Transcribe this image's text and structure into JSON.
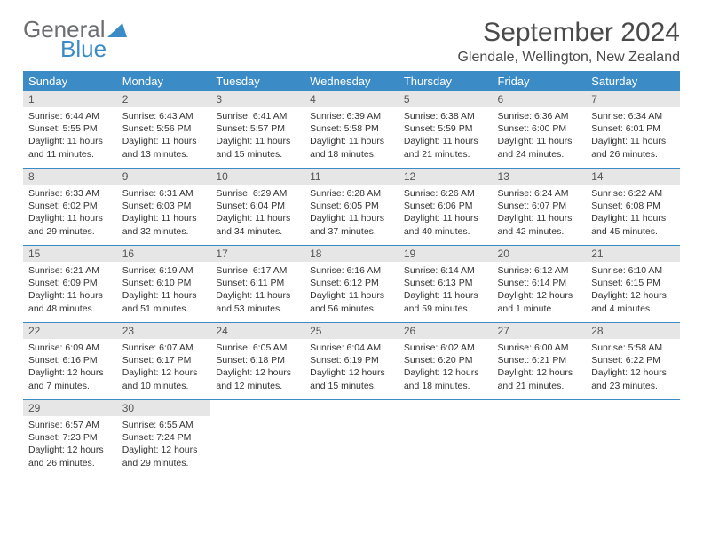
{
  "logo": {
    "text_gray": "General",
    "text_blue": "Blue",
    "gray_color": "#6d6e71",
    "blue_color": "#3b8bc6"
  },
  "header": {
    "month_title": "September 2024",
    "location": "Glendale, Wellington, New Zealand"
  },
  "styling": {
    "header_bg": "#3b8bc6",
    "header_text": "#ffffff",
    "daynum_bg": "#e6e6e6",
    "border_color": "#3b8bc6",
    "body_text_color": "#333333",
    "page_bg": "#ffffff",
    "th_fontsize": 13,
    "daynum_fontsize": 12,
    "body_fontsize": 10.5
  },
  "weekdays": [
    "Sunday",
    "Monday",
    "Tuesday",
    "Wednesday",
    "Thursday",
    "Friday",
    "Saturday"
  ],
  "weeks": [
    [
      {
        "n": "1",
        "sr": "Sunrise: 6:44 AM",
        "ss": "Sunset: 5:55 PM",
        "dl": "Daylight: 11 hours and 11 minutes."
      },
      {
        "n": "2",
        "sr": "Sunrise: 6:43 AM",
        "ss": "Sunset: 5:56 PM",
        "dl": "Daylight: 11 hours and 13 minutes."
      },
      {
        "n": "3",
        "sr": "Sunrise: 6:41 AM",
        "ss": "Sunset: 5:57 PM",
        "dl": "Daylight: 11 hours and 15 minutes."
      },
      {
        "n": "4",
        "sr": "Sunrise: 6:39 AM",
        "ss": "Sunset: 5:58 PM",
        "dl": "Daylight: 11 hours and 18 minutes."
      },
      {
        "n": "5",
        "sr": "Sunrise: 6:38 AM",
        "ss": "Sunset: 5:59 PM",
        "dl": "Daylight: 11 hours and 21 minutes."
      },
      {
        "n": "6",
        "sr": "Sunrise: 6:36 AM",
        "ss": "Sunset: 6:00 PM",
        "dl": "Daylight: 11 hours and 24 minutes."
      },
      {
        "n": "7",
        "sr": "Sunrise: 6:34 AM",
        "ss": "Sunset: 6:01 PM",
        "dl": "Daylight: 11 hours and 26 minutes."
      }
    ],
    [
      {
        "n": "8",
        "sr": "Sunrise: 6:33 AM",
        "ss": "Sunset: 6:02 PM",
        "dl": "Daylight: 11 hours and 29 minutes."
      },
      {
        "n": "9",
        "sr": "Sunrise: 6:31 AM",
        "ss": "Sunset: 6:03 PM",
        "dl": "Daylight: 11 hours and 32 minutes."
      },
      {
        "n": "10",
        "sr": "Sunrise: 6:29 AM",
        "ss": "Sunset: 6:04 PM",
        "dl": "Daylight: 11 hours and 34 minutes."
      },
      {
        "n": "11",
        "sr": "Sunrise: 6:28 AM",
        "ss": "Sunset: 6:05 PM",
        "dl": "Daylight: 11 hours and 37 minutes."
      },
      {
        "n": "12",
        "sr": "Sunrise: 6:26 AM",
        "ss": "Sunset: 6:06 PM",
        "dl": "Daylight: 11 hours and 40 minutes."
      },
      {
        "n": "13",
        "sr": "Sunrise: 6:24 AM",
        "ss": "Sunset: 6:07 PM",
        "dl": "Daylight: 11 hours and 42 minutes."
      },
      {
        "n": "14",
        "sr": "Sunrise: 6:22 AM",
        "ss": "Sunset: 6:08 PM",
        "dl": "Daylight: 11 hours and 45 minutes."
      }
    ],
    [
      {
        "n": "15",
        "sr": "Sunrise: 6:21 AM",
        "ss": "Sunset: 6:09 PM",
        "dl": "Daylight: 11 hours and 48 minutes."
      },
      {
        "n": "16",
        "sr": "Sunrise: 6:19 AM",
        "ss": "Sunset: 6:10 PM",
        "dl": "Daylight: 11 hours and 51 minutes."
      },
      {
        "n": "17",
        "sr": "Sunrise: 6:17 AM",
        "ss": "Sunset: 6:11 PM",
        "dl": "Daylight: 11 hours and 53 minutes."
      },
      {
        "n": "18",
        "sr": "Sunrise: 6:16 AM",
        "ss": "Sunset: 6:12 PM",
        "dl": "Daylight: 11 hours and 56 minutes."
      },
      {
        "n": "19",
        "sr": "Sunrise: 6:14 AM",
        "ss": "Sunset: 6:13 PM",
        "dl": "Daylight: 11 hours and 59 minutes."
      },
      {
        "n": "20",
        "sr": "Sunrise: 6:12 AM",
        "ss": "Sunset: 6:14 PM",
        "dl": "Daylight: 12 hours and 1 minute."
      },
      {
        "n": "21",
        "sr": "Sunrise: 6:10 AM",
        "ss": "Sunset: 6:15 PM",
        "dl": "Daylight: 12 hours and 4 minutes."
      }
    ],
    [
      {
        "n": "22",
        "sr": "Sunrise: 6:09 AM",
        "ss": "Sunset: 6:16 PM",
        "dl": "Daylight: 12 hours and 7 minutes."
      },
      {
        "n": "23",
        "sr": "Sunrise: 6:07 AM",
        "ss": "Sunset: 6:17 PM",
        "dl": "Daylight: 12 hours and 10 minutes."
      },
      {
        "n": "24",
        "sr": "Sunrise: 6:05 AM",
        "ss": "Sunset: 6:18 PM",
        "dl": "Daylight: 12 hours and 12 minutes."
      },
      {
        "n": "25",
        "sr": "Sunrise: 6:04 AM",
        "ss": "Sunset: 6:19 PM",
        "dl": "Daylight: 12 hours and 15 minutes."
      },
      {
        "n": "26",
        "sr": "Sunrise: 6:02 AM",
        "ss": "Sunset: 6:20 PM",
        "dl": "Daylight: 12 hours and 18 minutes."
      },
      {
        "n": "27",
        "sr": "Sunrise: 6:00 AM",
        "ss": "Sunset: 6:21 PM",
        "dl": "Daylight: 12 hours and 21 minutes."
      },
      {
        "n": "28",
        "sr": "Sunrise: 5:58 AM",
        "ss": "Sunset: 6:22 PM",
        "dl": "Daylight: 12 hours and 23 minutes."
      }
    ],
    [
      {
        "n": "29",
        "sr": "Sunrise: 6:57 AM",
        "ss": "Sunset: 7:23 PM",
        "dl": "Daylight: 12 hours and 26 minutes."
      },
      {
        "n": "30",
        "sr": "Sunrise: 6:55 AM",
        "ss": "Sunset: 7:24 PM",
        "dl": "Daylight: 12 hours and 29 minutes."
      },
      null,
      null,
      null,
      null,
      null
    ]
  ]
}
